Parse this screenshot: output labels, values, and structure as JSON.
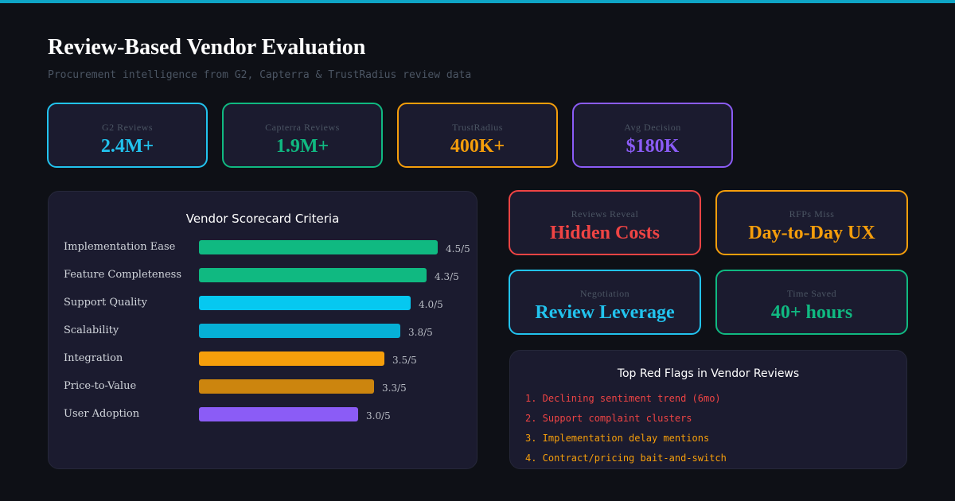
{
  "header": {
    "title": "Review-Based Vendor Evaluation",
    "subtitle": "Procurement intelligence from G2, Capterra & TrustRadius review data"
  },
  "stats": [
    {
      "label": "G2 Reviews",
      "value": "2.4M+",
      "color": "#22c3ee"
    },
    {
      "label": "Capterra Reviews",
      "value": "1.9M+",
      "color": "#10b981"
    },
    {
      "label": "TrustRadius",
      "value": "400K+",
      "color": "#f59e0b"
    },
    {
      "label": "Avg Decision",
      "value": "$180K",
      "color": "#8b5cf6"
    }
  ],
  "scorecard": {
    "title": "Vendor Scorecard Criteria",
    "max": 5,
    "criteria": [
      {
        "label": "Implementation Ease",
        "score": 4.5,
        "score_text": "4.5/5",
        "color": "#10b981"
      },
      {
        "label": "Feature Completeness",
        "score": 4.3,
        "score_text": "4.3/5",
        "color": "#10b981"
      },
      {
        "label": "Support Quality",
        "score": 4.0,
        "score_text": "4.0/5",
        "color": "#06c8f0"
      },
      {
        "label": "Scalability",
        "score": 3.8,
        "score_text": "3.8/5",
        "color": "#06b0d6"
      },
      {
        "label": "Integration",
        "score": 3.5,
        "score_text": "3.5/5",
        "color": "#f59e0b"
      },
      {
        "label": "Price-to-Value",
        "score": 3.3,
        "score_text": "3.3/5",
        "color": "#cc850e"
      },
      {
        "label": "User Adoption",
        "score": 3.0,
        "score_text": "3.0/5",
        "color": "#8b5cf6"
      }
    ]
  },
  "insights": [
    {
      "label": "Reviews Reveal",
      "value": "Hidden Costs",
      "color": "#ef4444"
    },
    {
      "label": "RFPs Miss",
      "value": "Day-to-Day UX",
      "color": "#f59e0b"
    },
    {
      "label": "Negotiation",
      "value": "Review Leverage",
      "color": "#22c3ee"
    },
    {
      "label": "Time Saved",
      "value": "40+ hours",
      "color": "#10b981"
    }
  ],
  "red_flags": {
    "title": "Top Red Flags in Vendor Reviews",
    "items": [
      {
        "text": "1. Declining sentiment trend (6mo)",
        "color": "#ef4444"
      },
      {
        "text": "2. Support complaint clusters",
        "color": "#ef4444"
      },
      {
        "text": "3. Implementation delay mentions",
        "color": "#f59e0b"
      },
      {
        "text": "4. Contract/pricing bait-and-switch",
        "color": "#f59e0b"
      }
    ]
  }
}
